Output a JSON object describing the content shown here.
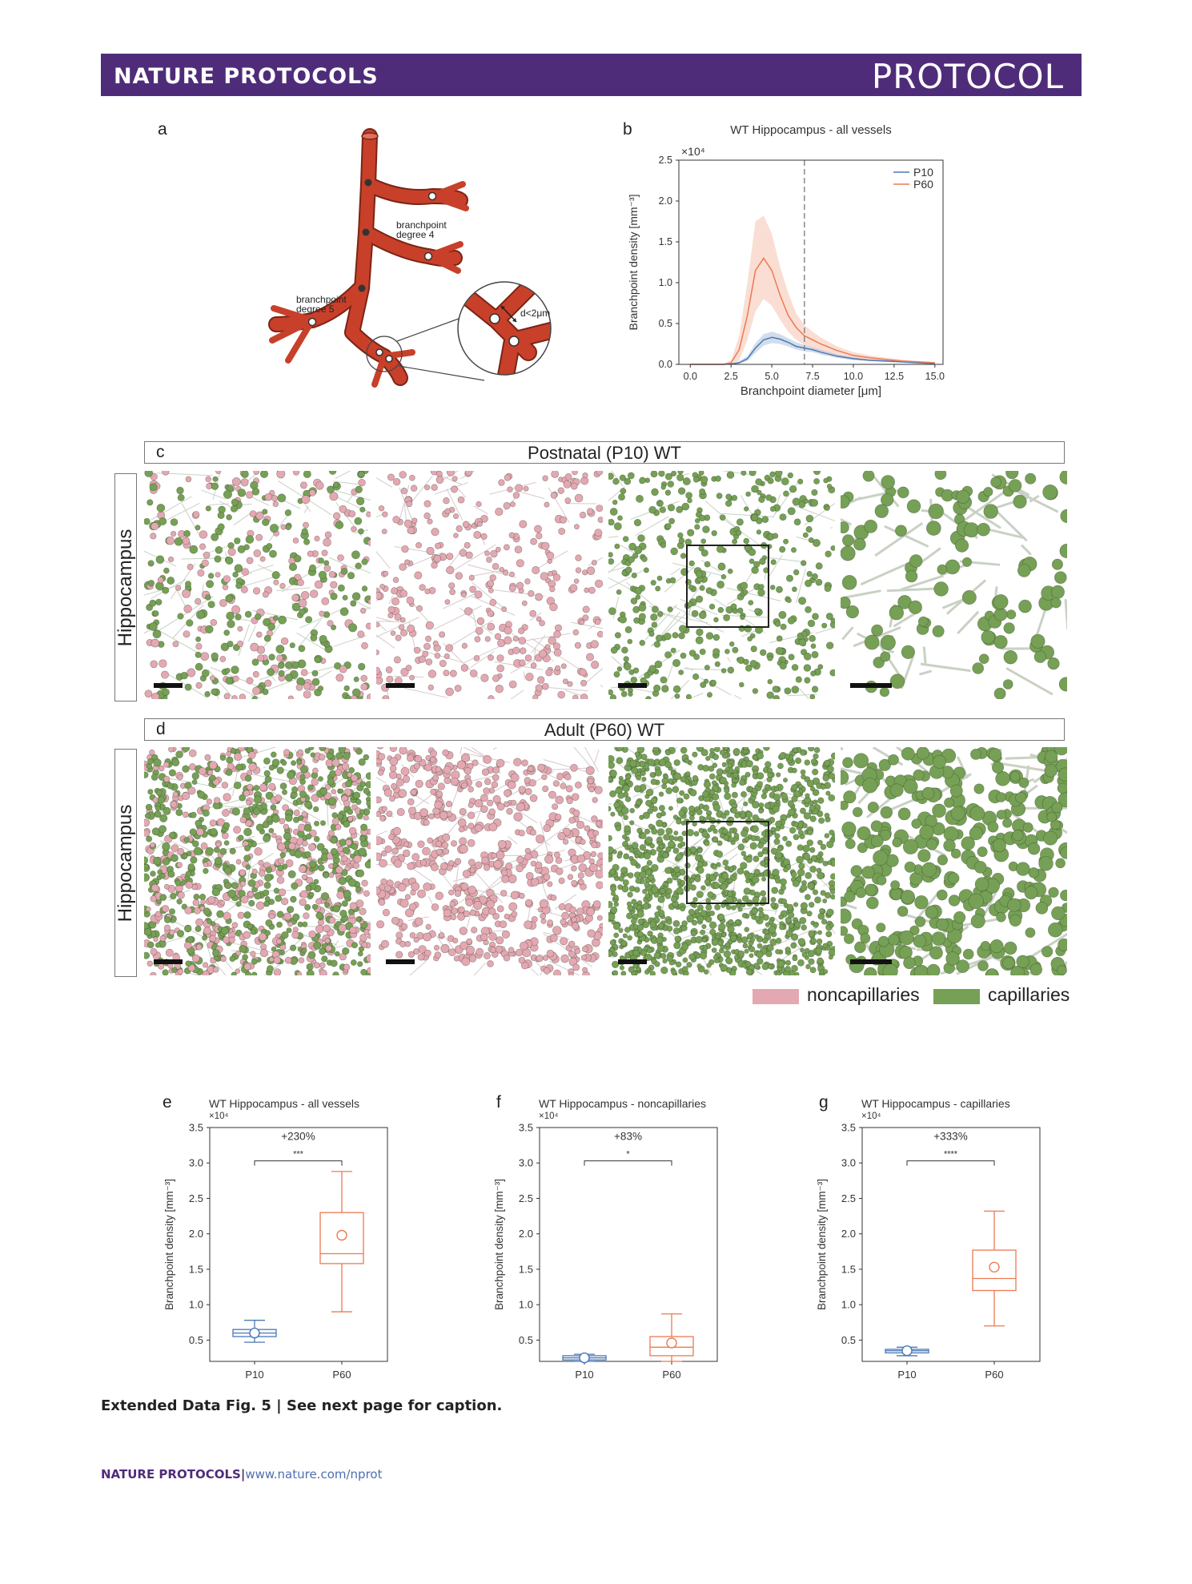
{
  "header": {
    "journal": "NATURE PROTOCOLS",
    "article_type": "PROTOCOL"
  },
  "panels": {
    "a": "a",
    "b": "b",
    "c": "c",
    "d": "d",
    "e": "e",
    "f": "f",
    "g": "g"
  },
  "diagram_a": {
    "label_deg4_l1": "branchpoint",
    "label_deg4_l2": "degree 4",
    "label_deg5_l1": "branchpoint",
    "label_deg5_l2": "degree 5",
    "label_dist": "d<2μm",
    "vessel_color": "#c8402a"
  },
  "section_c": {
    "title": "Postnatal (P10) WT",
    "row_label": "Hippocampus"
  },
  "section_d": {
    "title": "Adult (P60) WT",
    "row_label": "Hippocampus"
  },
  "legend": {
    "noncap": "noncapillaries",
    "cap": "capillaries",
    "noncap_color": "#e4a8b2",
    "cap_color": "#76a055"
  },
  "colors": {
    "p10": "#4a78b5",
    "p60": "#ec7a52",
    "header": "#4f2c7a"
  },
  "chart_data": [
    {
      "panel": "b",
      "type": "line",
      "title": "WT Hippocampus - all vessels",
      "xlabel": "Branchpoint diameter [μm]",
      "ylabel": "Branchpoint density [mm⁻³]",
      "multiplier": "×10⁴",
      "xlim": [
        -0.7,
        15.5
      ],
      "ylim": [
        0,
        2.5
      ],
      "xticks": [
        "0.0",
        "2.5",
        "5.0",
        "7.5",
        "10.0",
        "12.5",
        "15.0"
      ],
      "yticks": [
        "0.0",
        "0.5",
        "1.0",
        "1.5",
        "2.0",
        "2.5"
      ],
      "vline_x": 7.0,
      "x": [
        0,
        1,
        2,
        2.5,
        3,
        3.5,
        4,
        4.5,
        5,
        5.5,
        6,
        6.5,
        7,
        7.5,
        8,
        9,
        10,
        11,
        12,
        13,
        14,
        15
      ],
      "series": [
        {
          "name": "P10",
          "values": [
            0,
            0,
            0,
            0.005,
            0.02,
            0.07,
            0.2,
            0.3,
            0.33,
            0.31,
            0.27,
            0.22,
            0.2,
            0.18,
            0.15,
            0.1,
            0.07,
            0.05,
            0.04,
            0.03,
            0.02,
            0.01
          ],
          "upper": [
            0,
            0,
            0,
            0.01,
            0.04,
            0.1,
            0.26,
            0.37,
            0.4,
            0.37,
            0.32,
            0.27,
            0.24,
            0.21,
            0.18,
            0.12,
            0.09,
            0.06,
            0.05,
            0.04,
            0.03,
            0.02
          ],
          "lower": [
            0,
            0,
            0,
            0,
            0.01,
            0.04,
            0.14,
            0.23,
            0.26,
            0.25,
            0.22,
            0.18,
            0.16,
            0.15,
            0.12,
            0.08,
            0.05,
            0.04,
            0.03,
            0.02,
            0.01,
            0
          ]
        },
        {
          "name": "P60",
          "values": [
            0,
            0,
            0,
            0.02,
            0.18,
            0.6,
            1.15,
            1.3,
            1.15,
            0.85,
            0.6,
            0.45,
            0.35,
            0.3,
            0.25,
            0.17,
            0.11,
            0.08,
            0.06,
            0.04,
            0.03,
            0.02
          ],
          "upper": [
            0,
            0,
            0,
            0.05,
            0.35,
            1.0,
            1.75,
            1.82,
            1.6,
            1.2,
            0.88,
            0.62,
            0.48,
            0.4,
            0.33,
            0.22,
            0.15,
            0.11,
            0.08,
            0.06,
            0.04,
            0.03
          ],
          "lower": [
            0,
            0,
            0,
            0,
            0.05,
            0.3,
            0.65,
            0.8,
            0.72,
            0.55,
            0.4,
            0.3,
            0.24,
            0.2,
            0.17,
            0.11,
            0.08,
            0.05,
            0.04,
            0.03,
            0.02,
            0.01
          ]
        }
      ]
    },
    {
      "panel": "e",
      "type": "box",
      "title": "WT Hippocampus - all vessels",
      "multiplier": "×10⁴",
      "ylabel": "Branchpoint density [mm⁻³]",
      "ylim": [
        0.2,
        3.5
      ],
      "yticks": [
        "0.5",
        "1.0",
        "1.5",
        "2.0",
        "2.5",
        "3.0",
        "3.5"
      ],
      "categories": [
        "P10",
        "P60"
      ],
      "boxes": [
        {
          "name": "P10",
          "min": 0.47,
          "q1": 0.55,
          "median": 0.6,
          "q3": 0.65,
          "max": 0.78,
          "mean": 0.6
        },
        {
          "name": "P60",
          "min": 0.9,
          "q1": 1.58,
          "median": 1.72,
          "q3": 2.3,
          "max": 2.88,
          "mean": 1.98
        }
      ],
      "annotation": {
        "text": "+230%",
        "stars": "***",
        "y": 3.03
      }
    },
    {
      "panel": "f",
      "type": "box",
      "title": "WT Hippocampus - noncapillaries",
      "multiplier": "×10⁴",
      "ylabel": "Branchpoint density [mm⁻³]",
      "ylim": [
        0.2,
        3.5
      ],
      "yticks": [
        "0.5",
        "1.0",
        "1.5",
        "2.0",
        "2.5",
        "3.0",
        "3.5"
      ],
      "categories": [
        "P10",
        "P60"
      ],
      "boxes": [
        {
          "name": "P10",
          "min": 0.2,
          "q1": 0.22,
          "median": 0.25,
          "q3": 0.28,
          "max": 0.3,
          "mean": 0.25
        },
        {
          "name": "P60",
          "min": 0.2,
          "q1": 0.28,
          "median": 0.4,
          "q3": 0.55,
          "max": 0.87,
          "mean": 0.46
        }
      ],
      "annotation": {
        "text": "+83%",
        "stars": "*",
        "y": 3.03
      }
    },
    {
      "panel": "g",
      "type": "box",
      "title": "WT Hippocampus - capillaries",
      "multiplier": "×10⁴",
      "ylabel": "Branchpoint density [mm⁻³]",
      "ylim": [
        0.2,
        3.5
      ],
      "yticks": [
        "0.5",
        "1.0",
        "1.5",
        "2.0",
        "2.5",
        "3.0",
        "3.5"
      ],
      "categories": [
        "P10",
        "P60"
      ],
      "boxes": [
        {
          "name": "P10",
          "min": 0.28,
          "q1": 0.32,
          "median": 0.35,
          "q3": 0.37,
          "max": 0.4,
          "mean": 0.35
        },
        {
          "name": "P60",
          "min": 0.7,
          "q1": 1.2,
          "median": 1.37,
          "q3": 1.77,
          "max": 2.32,
          "mean": 1.53
        }
      ],
      "annotation": {
        "text": "+333%",
        "stars": "****",
        "y": 3.03
      }
    }
  ],
  "caption": {
    "bold": "Extended Data Fig. 5 |",
    "rest": "See next page for caption."
  },
  "footer": {
    "journal": "NATURE PROTOCOLS",
    "sep": "|",
    "url": "www.nature.com/nprot"
  }
}
